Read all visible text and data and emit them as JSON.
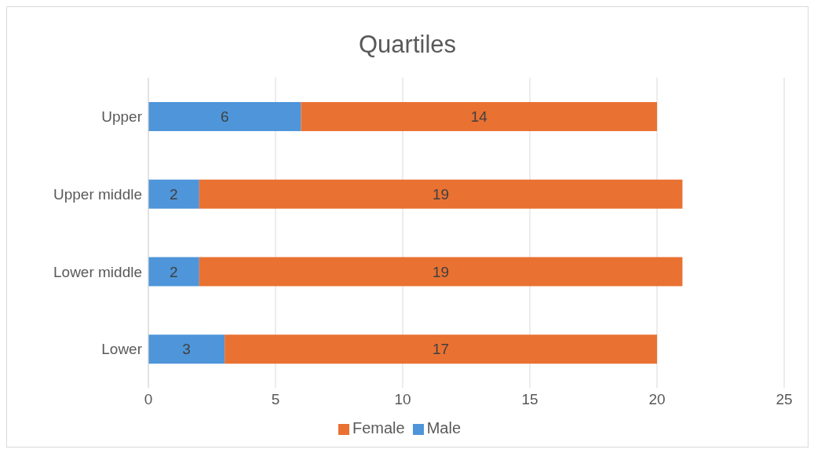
{
  "chart_data": {
    "type": "bar",
    "title": "Quartiles",
    "orientation": "horizontal",
    "stacked": true,
    "categories": [
      "Upper",
      "Upper middle",
      "Lower middle",
      "Lower"
    ],
    "series": [
      {
        "name": "Male",
        "color": "#4e95d9",
        "values": [
          6,
          2,
          2,
          3
        ]
      },
      {
        "name": "Female",
        "color": "#e97132",
        "values": [
          14,
          19,
          19,
          17
        ]
      }
    ],
    "xlim": [
      0,
      25
    ],
    "xticks": [
      0,
      5,
      10,
      15,
      20,
      25
    ],
    "grid": "x",
    "legend": "bottom",
    "data_labels": true
  }
}
